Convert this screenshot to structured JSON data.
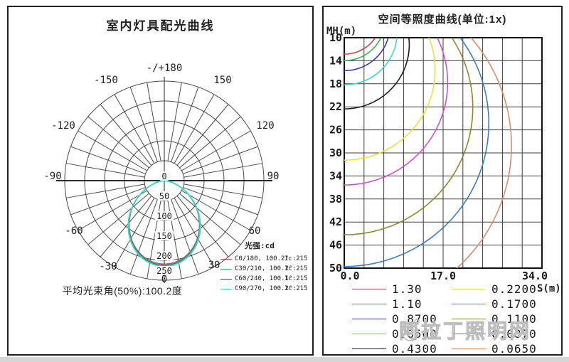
{
  "watermark": {
    "text": "阿拉丁照明网"
  },
  "left_panel": {
    "title": "室内灯具配光曲线",
    "footer": "平均光束角(50%):100.2度",
    "legend_title": "光强:cd",
    "legend_items": [
      {
        "label": "C0/180, 100.2°",
        "imax": "Ic:215",
        "color": "#b94a56"
      },
      {
        "label": "C30/210, 100.2°",
        "imax": "Ic:215",
        "color": "#3fae5a"
      },
      {
        "label": "C60/240, 100.1°",
        "imax": "Ic:215",
        "color": "#3a3aad"
      },
      {
        "label": "C90/270, 100.2°",
        "imax": "Ic:215",
        "color": "#3fd6cf"
      }
    ],
    "angle_labels": [
      "-/+180",
      "-150",
      "150",
      "-120",
      "120",
      "-90",
      "90",
      "-60",
      "60",
      "-30",
      "30",
      "0"
    ],
    "ring_labels": [
      "0",
      "50",
      "100",
      "150",
      "200",
      "250"
    ]
  },
  "right_panel": {
    "title": "空间等照度曲线(单位:1x)",
    "y_axis_label": "MH(m)",
    "x_axis_label": "S(m)",
    "y_ticks": [
      "10",
      "14",
      "18",
      "22",
      "26",
      "30",
      "34",
      "38",
      "42",
      "46",
      "50"
    ],
    "x_ticks": [
      "0.0",
      "17.0",
      "34.0"
    ]
  },
  "chart_data": [
    {
      "type": "line",
      "subtype": "polar-photometric-curve",
      "title": "室内灯具配光曲线",
      "units": "cd",
      "angle_tick_labels_deg": [
        -180,
        -150,
        -120,
        -90,
        -60,
        -30,
        0,
        30,
        60,
        90,
        120,
        150,
        180
      ],
      "radial_ticks_cd": [
        0,
        50,
        100,
        150,
        200,
        250
      ],
      "rmax_cd": 250,
      "peak_intensity_cd": 215,
      "beam_angle_50pct_deg": 100.2,
      "intensity_model": "I(theta) = 215 * cos(theta)^1.6 cd, theta from nadir (0 deg at bottom)",
      "series": [
        {
          "name": "C0/180",
          "beam_angle": "100.2°",
          "imax_label": "Ic:215",
          "color": "#b94a56"
        },
        {
          "name": "C30/210",
          "beam_angle": "100.2°",
          "imax_label": "Ic:215",
          "color": "#3fae5a"
        },
        {
          "name": "C60/240",
          "beam_angle": "100.1°",
          "imax_label": "Ic:215",
          "color": "#3a3aad"
        },
        {
          "name": "C90/270",
          "beam_angle": "100.2°",
          "imax_label": "Ic:215",
          "color": "#3fd6cf"
        }
      ]
    },
    {
      "type": "line",
      "subtype": "iso-illuminance-contours",
      "title": "空间等照度曲线(单位:1x)",
      "xlabel": "S(m)",
      "ylabel": "MH(m)",
      "xlim": [
        0,
        34
      ],
      "ylim": [
        10,
        50
      ],
      "x_tick_labels": [
        0.0,
        17.0,
        34.0
      ],
      "y_tick_step": 4,
      "x_grid_step": 3.4,
      "grid": true,
      "legend_position": "below",
      "contour_model": "circle through lamp origin: S^2 + (MH - R/2)^2 = (R/2)^2 with R = sqrt(215/lux)",
      "contours": [
        {
          "lux": 1.3,
          "label": "1.30",
          "color": "#b94a56"
        },
        {
          "lux": 1.1,
          "label": "1.10",
          "color": "#3fae5a"
        },
        {
          "lux": 0.87,
          "label": "0.8700",
          "color": "#3a3aad"
        },
        {
          "lux": 0.65,
          "label": "0.6500",
          "color": "#3fd6cf"
        },
        {
          "lux": 0.43,
          "label": "0.4300",
          "color": "#1e1e1e"
        },
        {
          "lux": 0.22,
          "label": "0.2200",
          "color": "#e6e23e"
        },
        {
          "lux": 0.17,
          "label": "0.1700",
          "color": "#cf4ecf"
        },
        {
          "lux": 0.11,
          "label": "0.1100",
          "color": "#8a8a2e"
        },
        {
          "lux": 0.087,
          "label": "0.0870",
          "color": "#3a7ec2"
        },
        {
          "lux": 0.065,
          "label": "0.0650",
          "color": "#dc8a6a"
        }
      ]
    }
  ]
}
